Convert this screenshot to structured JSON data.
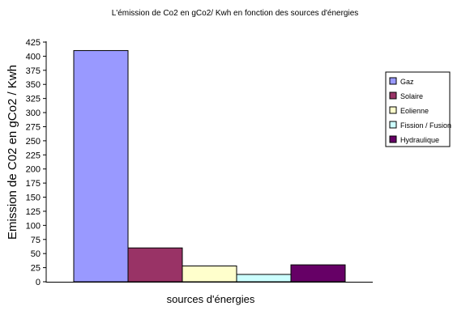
{
  "chart_data": {
    "type": "bar",
    "title": "L'émission de Co2 en gCo2/ Kwh en fonction des sources d'énergies",
    "xlabel": "sources d'énergies",
    "ylabel": "Emission de C02 en gCo2 / Kwh",
    "ylim": [
      0,
      425
    ],
    "yticks": [
      "0",
      "25",
      "50",
      "75",
      "100",
      "125",
      "150",
      "175",
      "200",
      "225",
      "250",
      "275",
      "300",
      "325",
      "350",
      "375",
      "400",
      "425"
    ],
    "grid": false,
    "legend_position": "right",
    "series": [
      {
        "name": "Gaz",
        "value": 410,
        "color": "#9999ff"
      },
      {
        "name": "Solaire",
        "value": 60,
        "color": "#993366"
      },
      {
        "name": "Eolienne",
        "value": 28,
        "color": "#ffffcc"
      },
      {
        "name": "Fission / Fusion",
        "value": 13,
        "color": "#ccffff"
      },
      {
        "name": "Hydraulique",
        "value": 30,
        "color": "#660066"
      }
    ]
  }
}
